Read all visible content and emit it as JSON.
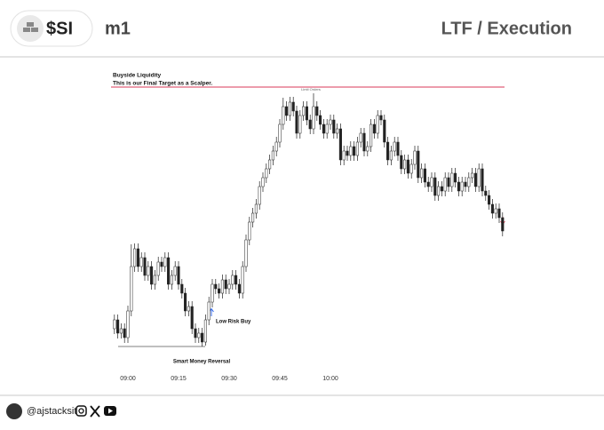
{
  "header": {
    "ticker": "$SI",
    "timeframe": "m1",
    "title": "LTF / Execution"
  },
  "footer": {
    "handle": "@ajstacksit"
  },
  "chart_data": {
    "type": "candlestick",
    "annotations": {
      "liquidity_title": "Buyside Liquidity",
      "liquidity_note": "This is our Final Target as a Scalper.",
      "orders": "Limit Orders",
      "buy": "Low Risk Buy",
      "reversal": "Smart Money Reversal"
    },
    "liquidity_level": 352,
    "reversal_level": 60,
    "liquidity_color": "#e0607a",
    "up_color": "#ffffff",
    "down_color": "#222222",
    "xticks": [
      "09:00",
      "09:15",
      "09:30",
      "09:45",
      "10:00"
    ],
    "x": [
      "08:56",
      "08:57",
      "08:58",
      "08:59",
      "09:00",
      "09:01",
      "09:02",
      "09:03",
      "09:04",
      "09:05",
      "09:06",
      "09:07",
      "09:08",
      "09:09",
      "09:10",
      "09:11",
      "09:12",
      "09:13",
      "09:14",
      "09:15",
      "09:16",
      "09:17",
      "09:18",
      "09:19",
      "09:20",
      "09:21",
      "09:22",
      "09:23",
      "09:24",
      "09:25",
      "09:26",
      "09:27",
      "09:28",
      "09:29",
      "09:30",
      "09:31",
      "09:32",
      "09:33",
      "09:34",
      "09:35",
      "09:36",
      "09:37",
      "09:38",
      "09:39",
      "09:40",
      "09:41",
      "09:42",
      "09:43",
      "09:44",
      "09:45",
      "09:46",
      "09:47",
      "09:48",
      "09:49",
      "09:50",
      "09:51",
      "09:52",
      "09:53",
      "09:54",
      "09:55",
      "09:56",
      "09:57",
      "09:58",
      "09:59",
      "10:00",
      "10:01",
      "10:02",
      "10:03",
      "10:04",
      "10:05",
      "10:06",
      "10:07",
      "10:08",
      "10:09",
      "10:10",
      "10:11",
      "10:12",
      "10:13",
      "10:14",
      "10:15",
      "10:16",
      "10:17",
      "10:18",
      "10:19",
      "10:20",
      "10:21",
      "10:22",
      "10:23",
      "10:24",
      "10:25",
      "10:26",
      "10:27",
      "10:28",
      "10:29",
      "10:30",
      "10:31",
      "10:32",
      "10:33",
      "10:34",
      "10:35",
      "10:36",
      "10:37",
      "10:38",
      "10:39",
      "10:40",
      "10:41",
      "10:42",
      "10:43",
      "10:44",
      "10:45",
      "10:46",
      "10:47",
      "10:48",
      "10:49",
      "10:50",
      "10:51"
    ],
    "open": [
      80,
      90,
      75,
      80,
      70,
      100,
      150,
      170,
      150,
      160,
      140,
      150,
      130,
      140,
      155,
      150,
      160,
      130,
      140,
      150,
      130,
      120,
      100,
      105,
      80,
      70,
      75,
      65,
      90,
      110,
      130,
      125,
      120,
      135,
      125,
      130,
      140,
      130,
      120,
      150,
      180,
      200,
      210,
      220,
      240,
      250,
      260,
      270,
      280,
      290,
      310,
      330,
      320,
      335,
      325,
      300,
      320,
      330,
      315,
      305,
      330,
      320,
      310,
      300,
      310,
      315,
      300,
      305,
      270,
      280,
      275,
      285,
      275,
      290,
      300,
      280,
      285,
      310,
      300,
      320,
      315,
      290,
      270,
      280,
      290,
      275,
      260,
      270,
      255,
      265,
      280,
      250,
      260,
      245,
      240,
      250,
      230,
      240,
      235,
      250,
      240,
      255,
      245,
      235,
      245,
      240,
      250,
      255,
      240,
      260,
      235,
      230,
      220,
      210,
      215,
      205
    ],
    "high": [
      96,
      96,
      86,
      86,
      106,
      175,
      176,
      176,
      166,
      166,
      156,
      156,
      146,
      161,
      161,
      166,
      166,
      146,
      156,
      156,
      136,
      126,
      111,
      111,
      86,
      81,
      81,
      96,
      116,
      136,
      136,
      131,
      141,
      141,
      136,
      146,
      146,
      136,
      156,
      186,
      206,
      216,
      226,
      246,
      256,
      266,
      276,
      286,
      296,
      316,
      340,
      336,
      341,
      341,
      331,
      326,
      336,
      336,
      321,
      345,
      336,
      326,
      316,
      316,
      321,
      321,
      311,
      311,
      286,
      286,
      291,
      291,
      296,
      306,
      306,
      291,
      316,
      316,
      326,
      326,
      321,
      296,
      286,
      296,
      296,
      281,
      276,
      276,
      271,
      286,
      286,
      266,
      266,
      251,
      256,
      256,
      246,
      246,
      256,
      256,
      261,
      261,
      251,
      251,
      251,
      256,
      261,
      261,
      266,
      266,
      241,
      236,
      226,
      221,
      221,
      211
    ],
    "low": [
      74,
      69,
      69,
      64,
      64,
      94,
      144,
      144,
      144,
      134,
      134,
      124,
      124,
      134,
      144,
      144,
      124,
      124,
      134,
      124,
      114,
      94,
      94,
      74,
      64,
      64,
      60,
      61,
      84,
      104,
      119,
      114,
      114,
      119,
      119,
      124,
      124,
      114,
      114,
      144,
      174,
      194,
      204,
      214,
      234,
      244,
      254,
      264,
      274,
      284,
      304,
      314,
      314,
      319,
      294,
      294,
      314,
      309,
      299,
      299,
      314,
      304,
      294,
      294,
      304,
      294,
      294,
      264,
      264,
      269,
      269,
      269,
      269,
      284,
      274,
      274,
      279,
      294,
      294,
      309,
      284,
      264,
      264,
      274,
      269,
      254,
      254,
      249,
      249,
      259,
      244,
      244,
      239,
      234,
      234,
      224,
      224,
      229,
      229,
      234,
      234,
      239,
      229,
      229,
      234,
      234,
      244,
      234,
      234,
      229,
      224,
      214,
      204,
      204,
      199,
      184
    ],
    "close": [
      90,
      75,
      80,
      70,
      100,
      150,
      170,
      150,
      160,
      140,
      150,
      130,
      140,
      155,
      150,
      160,
      130,
      140,
      150,
      130,
      120,
      100,
      105,
      80,
      70,
      75,
      65,
      90,
      110,
      130,
      125,
      120,
      135,
      125,
      130,
      140,
      130,
      120,
      150,
      180,
      200,
      210,
      220,
      240,
      250,
      260,
      270,
      280,
      290,
      310,
      330,
      320,
      335,
      325,
      300,
      320,
      330,
      315,
      305,
      330,
      320,
      310,
      300,
      310,
      315,
      300,
      305,
      270,
      280,
      275,
      285,
      275,
      290,
      300,
      280,
      285,
      310,
      300,
      320,
      315,
      290,
      270,
      280,
      290,
      275,
      260,
      270,
      255,
      265,
      280,
      250,
      260,
      245,
      240,
      250,
      230,
      240,
      235,
      250,
      240,
      255,
      245,
      235,
      245,
      240,
      250,
      255,
      240,
      260,
      235,
      230,
      220,
      210,
      215,
      205,
      190
    ]
  }
}
